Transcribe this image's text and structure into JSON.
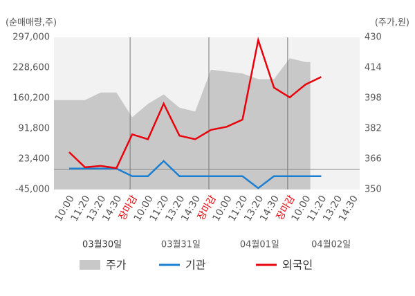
{
  "chart_data": {
    "type": "line",
    "y_axis_label": "(순매매량,주)",
    "y2_axis_label": "(주가,원)",
    "days": [
      {
        "label": "03월30일",
        "times": [
          "10:00",
          "11:20",
          "13:20",
          "14:30",
          "장마감"
        ]
      },
      {
        "label": "03월31일",
        "times": [
          "10:00",
          "11:20",
          "13:20",
          "14:30",
          "장마감"
        ]
      },
      {
        "label": "04월01일",
        "times": [
          "10:00",
          "11:20",
          "13:20",
          "14:30",
          "장마감"
        ]
      },
      {
        "label": "04월02일",
        "times": [
          "10:00",
          "11:20",
          "13:20",
          "14:30"
        ]
      }
    ],
    "close_label_color": "#e8000b",
    "series": [
      {
        "name": "주가",
        "type": "area",
        "axis": "y2",
        "color": "#c8c8c8",
        "values": [
          397,
          397,
          401,
          401,
          388,
          395,
          400,
          393,
          391,
          413,
          412,
          411,
          408,
          408,
          419,
          417,
          null,
          null,
          null
        ]
      },
      {
        "name": "기관",
        "color": "#1a7fd0",
        "values": [
          2000,
          2000,
          2000,
          2000,
          -15000,
          -15000,
          19000,
          -15000,
          -15000,
          -15000,
          -15000,
          -15000,
          -42000,
          -15000,
          -15000,
          -15000,
          -15000,
          null,
          null
        ]
      },
      {
        "name": "외국인",
        "color": "#e8000b",
        "values": [
          39000,
          5000,
          8000,
          3000,
          79000,
          68000,
          148000,
          76000,
          68000,
          89000,
          96000,
          112000,
          291000,
          184000,
          162000,
          191000,
          208000,
          null,
          null
        ]
      }
    ],
    "ylim": [
      -45000,
      297000
    ],
    "yticks": [
      {
        "value": -45000,
        "label": "-45,000"
      },
      {
        "value": 23400,
        "label": "23,400"
      },
      {
        "value": 91800,
        "label": "91,800"
      },
      {
        "value": 160200,
        "label": "160,200"
      },
      {
        "value": 228600,
        "label": "228,600"
      },
      {
        "value": 297000,
        "label": "297,000"
      }
    ],
    "y2lim": [
      350,
      430
    ],
    "y2ticks": [
      350,
      366,
      382,
      398,
      414,
      430
    ]
  }
}
